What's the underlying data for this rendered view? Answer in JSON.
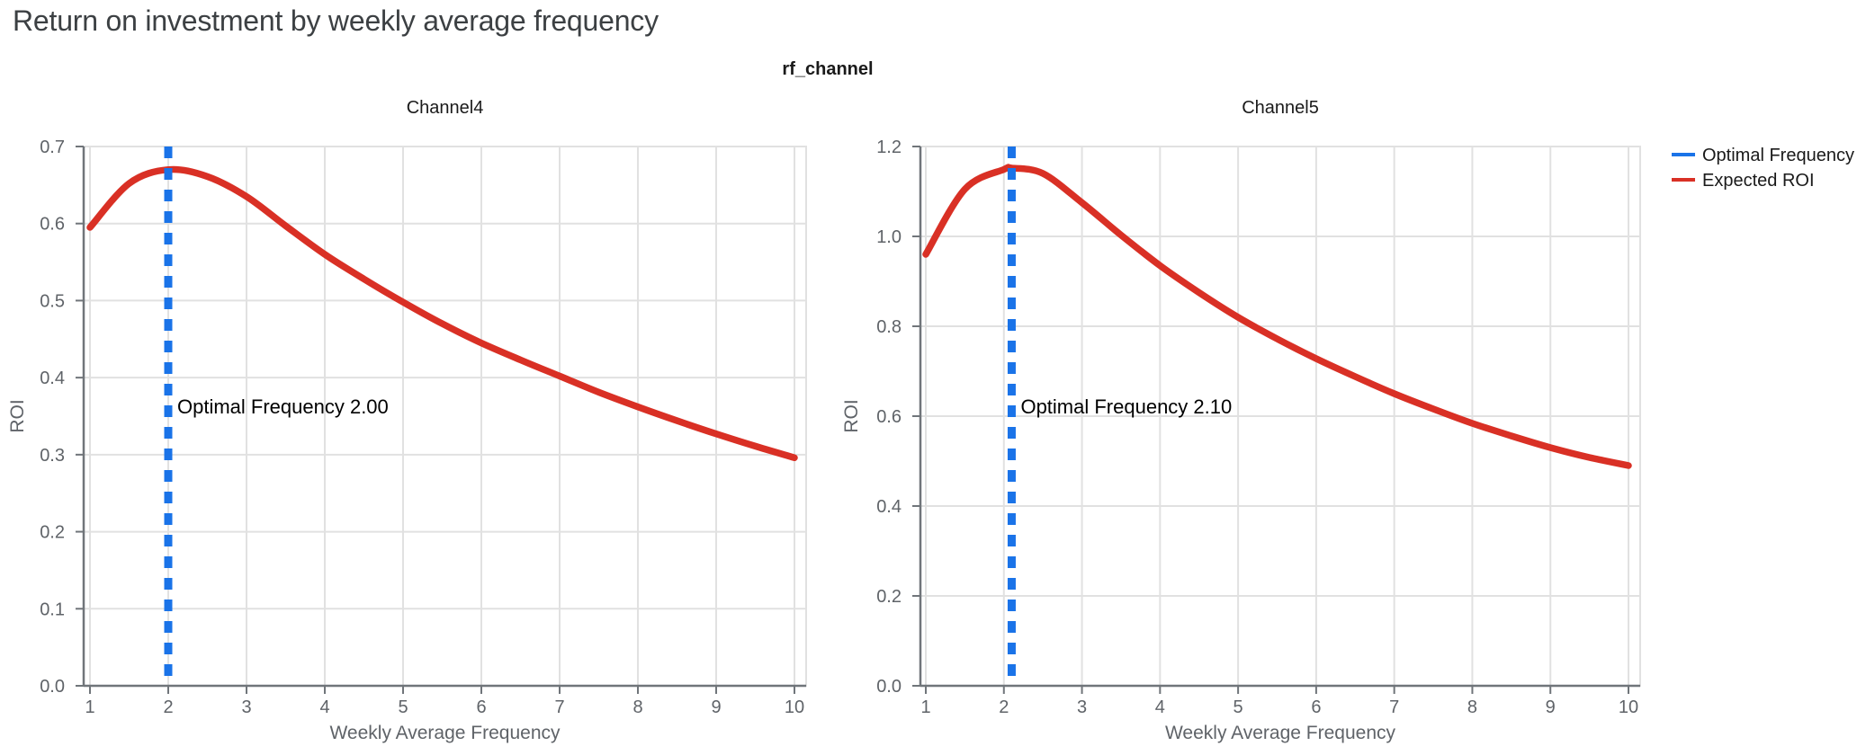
{
  "page": {
    "title": "Return on investment by weekly average frequency"
  },
  "figure": {
    "facet_title": "rf_channel",
    "x_axis_title": "Weekly Average Frequency",
    "y_axis_title": "ROI",
    "legend": {
      "items": [
        {
          "label": "Optimal Frequency",
          "color": "#1A73E8"
        },
        {
          "label": "Expected ROI",
          "color": "#D93025"
        }
      ]
    },
    "colors": {
      "roi_line": "#D93025",
      "optimal_line": "#1A73E8",
      "grid": "#E1E1E1",
      "axis": "#70757A",
      "tick_text": "#5F6368",
      "panel_title_text": "#1A1A1A",
      "annotation_text": "#000000",
      "page_title_text": "#3C4043"
    }
  },
  "chart_data": [
    {
      "type": "line",
      "panel_title": "Channel4",
      "xlabel": "Weekly Average Frequency",
      "ylabel": "ROI",
      "xlim": [
        1,
        10
      ],
      "ylim": [
        0,
        0.7
      ],
      "grid": true,
      "x_tick_values": [
        1,
        2,
        3,
        4,
        5,
        6,
        7,
        8,
        9,
        10
      ],
      "x_tick_labels": [
        "1",
        "2",
        "3",
        "4",
        "5",
        "6",
        "7",
        "8",
        "9",
        "10"
      ],
      "y_tick_values": [
        0.0,
        0.1,
        0.2,
        0.3,
        0.4,
        0.5,
        0.6,
        0.7
      ],
      "y_tick_labels": [
        "0.0",
        "0.1",
        "0.2",
        "0.3",
        "0.4",
        "0.5",
        "0.6",
        "0.7"
      ],
      "vline": {
        "name": "Optimal Frequency",
        "x": 2.0
      },
      "annotation": "Optimal Frequency  2.00",
      "series": [
        {
          "name": "Expected ROI",
          "x": [
            1,
            1.5,
            2,
            2.5,
            3,
            3.5,
            4,
            4.5,
            5,
            5.5,
            6,
            6.5,
            7,
            7.5,
            8,
            8.5,
            9,
            9.5,
            10
          ],
          "y": [
            0.595,
            0.652,
            0.67,
            0.661,
            0.635,
            0.597,
            0.56,
            0.528,
            0.498,
            0.47,
            0.445,
            0.423,
            0.402,
            0.381,
            0.362,
            0.344,
            0.327,
            0.311,
            0.296
          ]
        }
      ]
    },
    {
      "type": "line",
      "panel_title": "Channel5",
      "xlabel": "Weekly Average Frequency",
      "ylabel": "ROI",
      "xlim": [
        1,
        10
      ],
      "ylim": [
        0,
        1.2
      ],
      "grid": true,
      "x_tick_values": [
        1,
        2,
        3,
        4,
        5,
        6,
        7,
        8,
        9,
        10
      ],
      "x_tick_labels": [
        "1",
        "2",
        "3",
        "4",
        "5",
        "6",
        "7",
        "8",
        "9",
        "10"
      ],
      "y_tick_values": [
        0.0,
        0.2,
        0.4,
        0.6,
        0.8,
        1.0,
        1.2
      ],
      "y_tick_labels": [
        "0.0",
        "0.2",
        "0.4",
        "0.6",
        "0.8",
        "1.0",
        "1.2"
      ],
      "vline": {
        "name": "Optimal Frequency",
        "x": 2.1
      },
      "annotation": "Optimal Frequency  2.10",
      "series": [
        {
          "name": "Expected ROI",
          "x": [
            1,
            1.5,
            2,
            2.1,
            2.5,
            3,
            3.5,
            4,
            4.5,
            5,
            5.5,
            6,
            6.5,
            7,
            7.5,
            8,
            8.5,
            9,
            9.5,
            10
          ],
          "y": [
            0.96,
            1.105,
            1.149,
            1.152,
            1.14,
            1.075,
            1.003,
            0.935,
            0.875,
            0.82,
            0.772,
            0.728,
            0.688,
            0.65,
            0.616,
            0.584,
            0.556,
            0.53,
            0.508,
            0.49
          ]
        }
      ]
    }
  ]
}
